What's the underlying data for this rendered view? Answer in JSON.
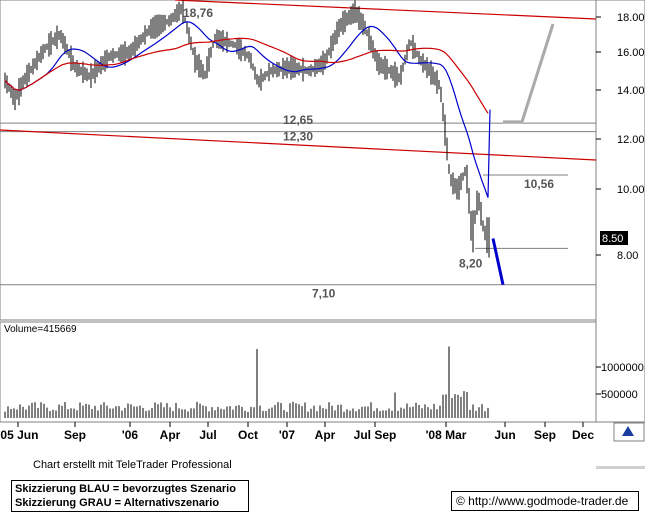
{
  "chart_data": {
    "type": "candlestick",
    "price_axis": {
      "ticks": [
        8.0,
        10.0,
        12.0,
        14.0,
        16.0,
        18.0
      ],
      "tick_labels": [
        "8.00",
        "10.00",
        "12.00",
        "14.00",
        "16.00",
        "18.00"
      ]
    },
    "volume_axis": {
      "ticks": [
        500000,
        1000000
      ],
      "tick_labels": [
        "500000",
        "1000000"
      ]
    },
    "x_tick_labels": [
      "'05 Jun",
      "Sep",
      "'06",
      "Apr",
      "Jul",
      "Oct",
      "'07",
      "Apr",
      "Jul Sep",
      "'08 Mar",
      "Jun",
      "Sep",
      "Dec"
    ],
    "last_price_label": "8.50",
    "volume_label": "Volume=415669",
    "annotations": {
      "high": "18,76",
      "level_1265": "12,65",
      "level_1230": "12,30",
      "level_1056": "10,56",
      "level_820": "8,20",
      "level_710": "7,10"
    },
    "horizontal_levels": [
      12.65,
      12.3,
      10.56,
      8.2,
      7.1
    ],
    "trend_lines": [
      {
        "from": [
          "'05 Jun",
          12.2
        ],
        "to": [
          "Dec",
          11.2
        ],
        "color": "#cc0000"
      },
      {
        "from": [
          "Apr '06",
          19.3
        ],
        "to": [
          "Dec",
          18.0
        ],
        "color": "#cc0000"
      }
    ],
    "scenario_paths": [
      {
        "name": "Skizzierung BLAU",
        "color": "#0000cc",
        "points": [
          8.5,
          7.1
        ]
      },
      {
        "name": "Skizzierung GRAU",
        "color": "#aaaaaa",
        "points": [
          12.7,
          12.7,
          17.6
        ]
      }
    ],
    "series": [
      {
        "name": "close",
        "color": "#000000"
      },
      {
        "name": "moving-average-short",
        "color": "#0000cc"
      },
      {
        "name": "moving-average-long",
        "color": "#cc0000"
      }
    ],
    "volume_peak": 1400000
  },
  "footer": {
    "credit": "Chart erstellt mit TeleTrader Professional",
    "legend_line_1": "Skizzierung BLAU = bevorzugtes Szenario",
    "legend_line_2": "Skizzierung GRAU = Alternativszenario",
    "copyright": "© http://www.godmode-trader.de"
  },
  "colors": {
    "up": "#000000",
    "red_line": "#cc0000",
    "blue_line": "#0000cc",
    "gray_line": "#aaaaaa",
    "grid": "#808080"
  }
}
